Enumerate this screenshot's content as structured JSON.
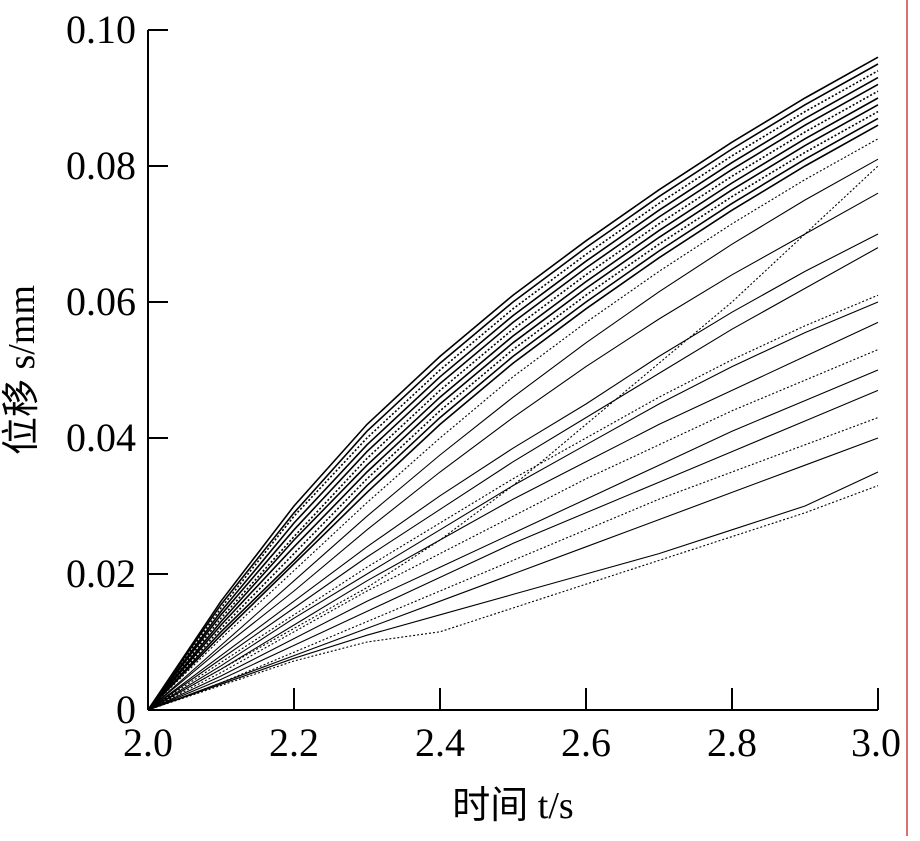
{
  "chart_data": {
    "type": "line",
    "title": "",
    "xlabel": "时间 t/s",
    "ylabel": "位移 s/mm",
    "xlim": [
      2.0,
      3.0
    ],
    "ylim": [
      0,
      0.1
    ],
    "x_ticks": [
      2.0,
      2.2,
      2.4,
      2.6,
      2.8,
      3.0
    ],
    "x_tick_labels": [
      "2.0",
      "2.2",
      "2.4",
      "2.6",
      "2.8",
      "3.0"
    ],
    "y_ticks": [
      0,
      0.02,
      0.04,
      0.06,
      0.08,
      0.1
    ],
    "y_tick_labels": [
      "0",
      "0.02",
      "0.04",
      "0.06",
      "0.08",
      "0.10"
    ],
    "grid": false,
    "legend": "none",
    "line_color": "#000000",
    "right_edge_line_color": "#d04040",
    "x": [
      2.0,
      2.1,
      2.2,
      2.3,
      2.4,
      2.5,
      2.6,
      2.7,
      2.8,
      2.9,
      3.0
    ],
    "series": [
      {
        "values": [
          0,
          0.016,
          0.03,
          0.042,
          0.052,
          0.061,
          0.069,
          0.0765,
          0.0835,
          0.09,
          0.096
        ]
      },
      {
        "values": [
          0,
          0.0155,
          0.029,
          0.041,
          0.051,
          0.06,
          0.068,
          0.0755,
          0.0825,
          0.089,
          0.095
        ]
      },
      {
        "values": [
          0,
          0.015,
          0.0285,
          0.04,
          0.05,
          0.059,
          0.067,
          0.0745,
          0.0815,
          0.088,
          0.094
        ]
      },
      {
        "values": [
          0,
          0.0145,
          0.0275,
          0.039,
          0.049,
          0.058,
          0.066,
          0.0735,
          0.0805,
          0.087,
          0.093
        ]
      },
      {
        "values": [
          0,
          0.014,
          0.0265,
          0.038,
          0.048,
          0.057,
          0.065,
          0.0725,
          0.0795,
          0.086,
          0.092
        ]
      },
      {
        "values": [
          0,
          0.0135,
          0.0255,
          0.037,
          0.047,
          0.056,
          0.064,
          0.0715,
          0.0785,
          0.085,
          0.091
        ]
      },
      {
        "values": [
          0,
          0.013,
          0.025,
          0.036,
          0.046,
          0.055,
          0.063,
          0.0705,
          0.0775,
          0.084,
          0.09
        ]
      },
      {
        "values": [
          0,
          0.0125,
          0.024,
          0.035,
          0.045,
          0.054,
          0.062,
          0.0695,
          0.0765,
          0.083,
          0.089
        ]
      },
      {
        "values": [
          0,
          0.012,
          0.023,
          0.034,
          0.044,
          0.053,
          0.061,
          0.0685,
          0.0755,
          0.082,
          0.088
        ]
      },
      {
        "values": [
          0,
          0.0115,
          0.022,
          0.033,
          0.043,
          0.052,
          0.06,
          0.0675,
          0.0745,
          0.081,
          0.087
        ]
      },
      {
        "values": [
          0,
          0.011,
          0.0215,
          0.032,
          0.042,
          0.051,
          0.059,
          0.0665,
          0.0735,
          0.08,
          0.086
        ]
      },
      {
        "values": [
          0,
          0.0105,
          0.0205,
          0.0305,
          0.04,
          0.049,
          0.057,
          0.0645,
          0.0715,
          0.078,
          0.084
        ]
      },
      {
        "values": [
          0,
          0.0095,
          0.019,
          0.0285,
          0.0375,
          0.046,
          0.054,
          0.0615,
          0.0685,
          0.075,
          0.081
        ]
      },
      {
        "values": [
          0,
          0.009,
          0.0175,
          0.0265,
          0.035,
          0.043,
          0.0505,
          0.0575,
          0.064,
          0.07,
          0.076
        ]
      },
      {
        "values": [
          0,
          0.006,
          0.012,
          0.018,
          0.025,
          0.033,
          0.042,
          0.051,
          0.06,
          0.07,
          0.08
        ]
      },
      {
        "values": [
          0,
          0.008,
          0.016,
          0.024,
          0.0315,
          0.0385,
          0.045,
          0.052,
          0.0585,
          0.0645,
          0.07
        ]
      },
      {
        "values": [
          0,
          0.0075,
          0.015,
          0.0225,
          0.0295,
          0.0365,
          0.043,
          0.0495,
          0.056,
          0.062,
          0.068
        ]
      },
      {
        "values": [
          0,
          0.007,
          0.014,
          0.021,
          0.0275,
          0.034,
          0.04,
          0.046,
          0.0515,
          0.0565,
          0.061
        ]
      },
      {
        "values": [
          0,
          0.0065,
          0.0135,
          0.02,
          0.0265,
          0.033,
          0.039,
          0.045,
          0.0505,
          0.0555,
          0.06
        ]
      },
      {
        "values": [
          0,
          0.006,
          0.0125,
          0.019,
          0.025,
          0.031,
          0.0365,
          0.042,
          0.047,
          0.052,
          0.057
        ]
      },
      {
        "values": [
          0,
          0.0055,
          0.0115,
          0.0175,
          0.023,
          0.0285,
          0.034,
          0.039,
          0.044,
          0.0485,
          0.053
        ]
      },
      {
        "values": [
          0,
          0.005,
          0.0105,
          0.016,
          0.021,
          0.026,
          0.031,
          0.036,
          0.041,
          0.0455,
          0.05
        ]
      },
      {
        "values": [
          0,
          0.0045,
          0.0095,
          0.0145,
          0.0195,
          0.0245,
          0.029,
          0.0335,
          0.038,
          0.0425,
          0.047
        ]
      },
      {
        "values": [
          0,
          0.004,
          0.0085,
          0.013,
          0.0175,
          0.022,
          0.0265,
          0.031,
          0.035,
          0.039,
          0.043
        ]
      },
      {
        "values": [
          0,
          0.004,
          0.008,
          0.012,
          0.016,
          0.02,
          0.024,
          0.028,
          0.032,
          0.036,
          0.04
        ]
      },
      {
        "values": [
          0,
          0.0038,
          0.0076,
          0.011,
          0.014,
          0.017,
          0.02,
          0.023,
          0.0265,
          0.03,
          0.035
        ]
      },
      {
        "values": [
          0,
          0.0036,
          0.0072,
          0.01,
          0.0115,
          0.015,
          0.0185,
          0.022,
          0.0255,
          0.029,
          0.033
        ]
      }
    ]
  }
}
